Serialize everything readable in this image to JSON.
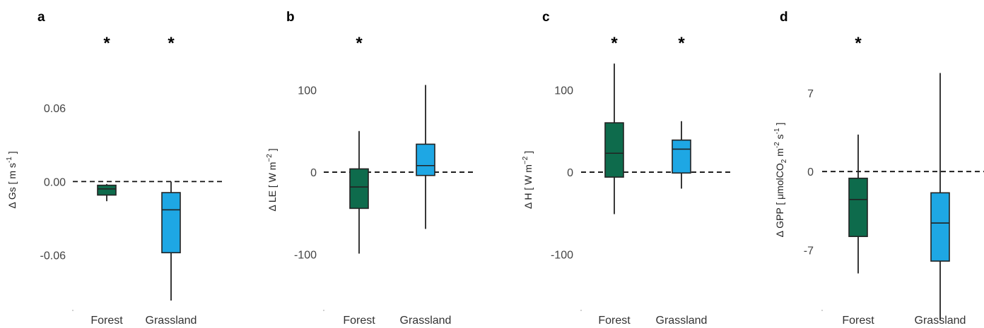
{
  "colors": {
    "forest": "#0e6b4c",
    "grassland": "#1ea7e4",
    "stroke": "#222222",
    "dashed": "#111111"
  },
  "chart_data": [
    {
      "type": "box",
      "panel": "a",
      "ylabel_parts": [
        "Δ Gs",
        "[ m s",
        "-1",
        " ]"
      ],
      "yticks": [
        0.06,
        0.0,
        -0.06
      ],
      "ytick_labels": [
        "0.06",
        "0.00",
        "-0.06"
      ],
      "ylim": [
        -0.105,
        0.125
      ],
      "categories": [
        "Forest",
        "Grassland"
      ],
      "boxes": [
        {
          "category": "Forest",
          "whisker_low": -0.016,
          "q1": -0.011,
          "median": -0.006,
          "q3": -0.003,
          "whisker_high": -0.002,
          "significant": "*"
        },
        {
          "category": "Grassland",
          "whisker_low": -0.097,
          "q1": -0.058,
          "median": -0.023,
          "q3": -0.009,
          "whisker_high": 0.0,
          "significant": "*"
        }
      ],
      "reference_line": 0.0
    },
    {
      "type": "box",
      "panel": "b",
      "ylabel_parts": [
        "Δ LE",
        "[ W m",
        "−2",
        " ]"
      ],
      "yticks": [
        100,
        0,
        -100
      ],
      "ytick_labels": [
        "100",
        "0",
        "-100"
      ],
      "ylim": [
        -168,
        175
      ],
      "categories": [
        "Forest",
        "Grassland"
      ],
      "boxes": [
        {
          "category": "Forest",
          "whisker_low": -99,
          "q1": -44,
          "median": -18,
          "q3": 4,
          "whisker_high": 50,
          "significant": "*"
        },
        {
          "category": "Grassland",
          "whisker_low": -69,
          "q1": -4,
          "median": 8,
          "q3": 34,
          "whisker_high": 106,
          "significant": ""
        }
      ],
      "reference_line": 0
    },
    {
      "type": "box",
      "panel": "c",
      "ylabel_parts": [
        "Δ H",
        "[ W m",
        "−2",
        " ]"
      ],
      "yticks": [
        100,
        0,
        -100
      ],
      "ytick_labels": [
        "100",
        "0",
        "-100"
      ],
      "ylim": [
        -168,
        175
      ],
      "categories": [
        "Forest",
        "Grassland"
      ],
      "boxes": [
        {
          "category": "Forest",
          "whisker_low": -51,
          "q1": -6,
          "median": 23,
          "q3": 60,
          "whisker_high": 132,
          "significant": "*"
        },
        {
          "category": "Grassland",
          "whisker_low": -20,
          "q1": -1,
          "median": 28,
          "q3": 39,
          "whisker_high": 62,
          "significant": "*"
        }
      ],
      "reference_line": 0
    },
    {
      "type": "box",
      "panel": "d",
      "ylabel_parts": [
        "Δ GPP",
        "[ μmolCO",
        "2",
        " m",
        "-2",
        " s",
        "-1",
        " ]"
      ],
      "yticks": [
        7,
        0,
        -7
      ],
      "ytick_labels": [
        "7",
        "0",
        "-7"
      ],
      "ylim": [
        -12.4,
        12.8
      ],
      "categories": [
        "Forest",
        "Grassland"
      ],
      "boxes": [
        {
          "category": "Forest",
          "whisker_low": -9.1,
          "q1": -5.8,
          "median": -2.5,
          "q3": -0.6,
          "whisker_high": 3.3,
          "significant": "*"
        },
        {
          "category": "Grassland",
          "whisker_low": -13.3,
          "q1": -8.0,
          "median": -4.6,
          "q3": -1.9,
          "whisker_high": 8.8,
          "significant": ""
        }
      ],
      "reference_line": 0
    }
  ]
}
